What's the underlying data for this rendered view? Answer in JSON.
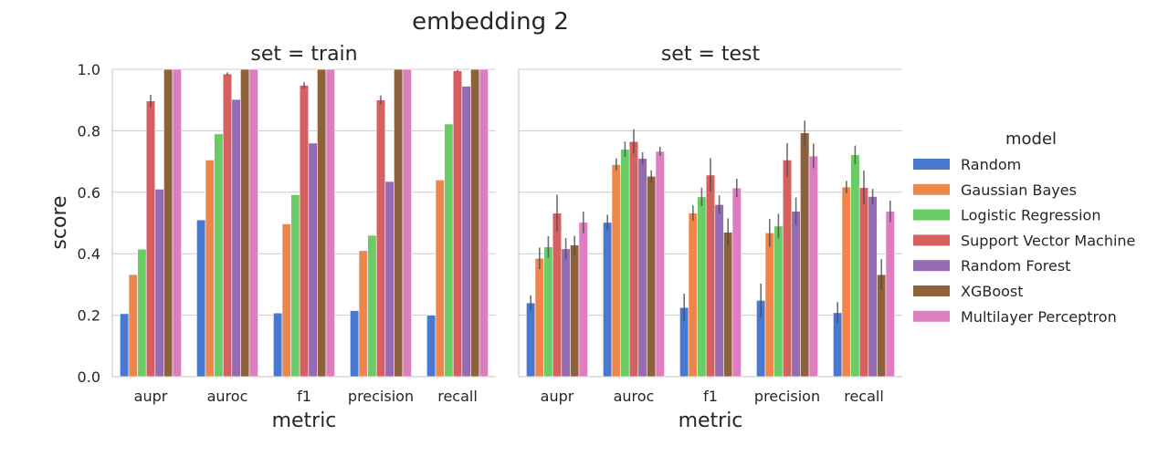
{
  "chart_data": {
    "type": "bar",
    "title": "embedding 2",
    "xlabel": "metric",
    "ylabel": "score",
    "ylim": [
      0,
      1
    ],
    "yticks": [
      "0.0",
      "0.2",
      "0.4",
      "0.6",
      "0.8",
      "1.0"
    ],
    "grid": true,
    "categories": [
      "aupr",
      "auroc",
      "f1",
      "precision",
      "recall"
    ],
    "legend": {
      "title": "model",
      "placement": "right"
    },
    "series_meta": [
      {
        "name": "Random",
        "color": "#4878cf"
      },
      {
        "name": "Gaussian Bayes",
        "color": "#ee854a"
      },
      {
        "name": "Logistic Regression",
        "color": "#6acc64"
      },
      {
        "name": "Support Vector Machine",
        "color": "#d65f5f"
      },
      {
        "name": "Random Forest",
        "color": "#956cb4"
      },
      {
        "name": "XGBoost",
        "color": "#8c613c"
      },
      {
        "name": "Multilayer Perceptron",
        "color": "#dc7ec0"
      }
    ],
    "panels": [
      {
        "title": "set = train",
        "series": [
          {
            "name": "Random",
            "values": [
              0.205,
              0.51,
              0.207,
              0.215,
              0.2
            ],
            "err": [
              0,
              0,
              0,
              0,
              0
            ]
          },
          {
            "name": "Gaussian Bayes",
            "values": [
              0.332,
              0.705,
              0.497,
              0.41,
              0.64
            ],
            "err": [
              0,
              0,
              0,
              0,
              0
            ]
          },
          {
            "name": "Logistic Regression",
            "values": [
              0.415,
              0.79,
              0.592,
              0.46,
              0.822
            ],
            "err": [
              0,
              0,
              0,
              0,
              0
            ]
          },
          {
            "name": "Support Vector Machine",
            "values": [
              0.897,
              0.985,
              0.948,
              0.9,
              0.995
            ],
            "err": [
              0.02,
              0.005,
              0.01,
              0.015,
              0.003
            ]
          },
          {
            "name": "Random Forest",
            "values": [
              0.61,
              0.902,
              0.76,
              0.635,
              0.945
            ],
            "err": [
              0,
              0,
              0,
              0,
              0
            ]
          },
          {
            "name": "XGBoost",
            "values": [
              1.0,
              1.0,
              1.0,
              1.0,
              1.0
            ],
            "err": [
              0,
              0,
              0,
              0,
              0
            ]
          },
          {
            "name": "Multilayer Perceptron",
            "values": [
              1.0,
              1.0,
              1.0,
              1.0,
              1.0
            ],
            "err": [
              0,
              0,
              0,
              0,
              0
            ]
          }
        ]
      },
      {
        "title": "set = test",
        "series": [
          {
            "name": "Random",
            "values": [
              0.24,
              0.502,
              0.225,
              0.248,
              0.208
            ],
            "err": [
              0.025,
              0.025,
              0.045,
              0.055,
              0.035
            ]
          },
          {
            "name": "Gaussian Bayes",
            "values": [
              0.385,
              0.69,
              0.532,
              0.468,
              0.617
            ],
            "err": [
              0.035,
              0.02,
              0.025,
              0.045,
              0.02
            ]
          },
          {
            "name": "Logistic Regression",
            "values": [
              0.422,
              0.74,
              0.585,
              0.49,
              0.722
            ],
            "err": [
              0.035,
              0.025,
              0.03,
              0.04,
              0.03
            ]
          },
          {
            "name": "Support Vector Machine",
            "values": [
              0.532,
              0.765,
              0.656,
              0.705,
              0.615
            ],
            "err": [
              0.06,
              0.04,
              0.055,
              0.055,
              0.055
            ]
          },
          {
            "name": "Random Forest",
            "values": [
              0.416,
              0.71,
              0.56,
              0.538,
              0.586
            ],
            "err": [
              0.035,
              0.02,
              0.03,
              0.045,
              0.025
            ]
          },
          {
            "name": "XGBoost",
            "values": [
              0.428,
              0.652,
              0.47,
              0.793,
              0.332
            ],
            "err": [
              0.03,
              0.02,
              0.045,
              0.04,
              0.05
            ]
          },
          {
            "name": "Multilayer Perceptron",
            "values": [
              0.502,
              0.733,
              0.614,
              0.718,
              0.538
            ],
            "err": [
              0.035,
              0.015,
              0.03,
              0.04,
              0.035
            ]
          }
        ]
      }
    ]
  }
}
